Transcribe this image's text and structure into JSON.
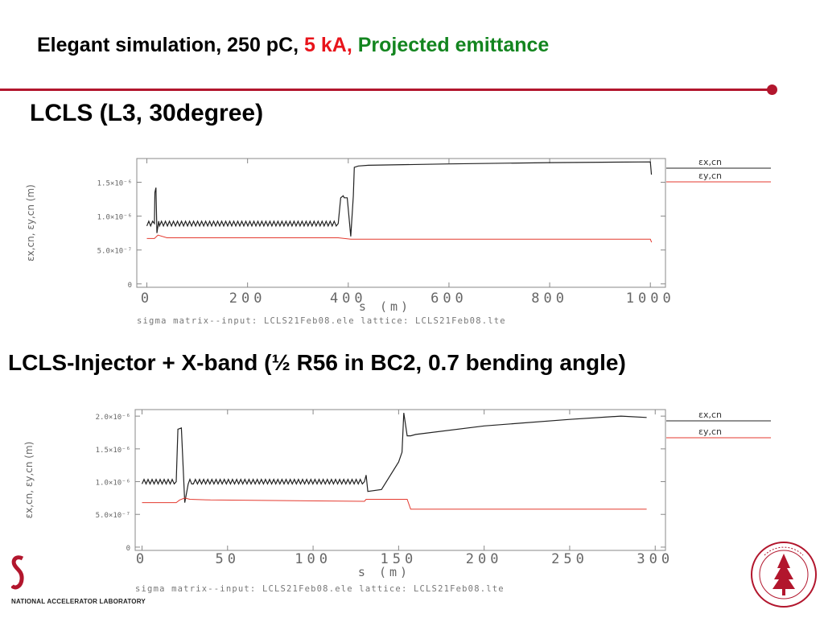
{
  "slide": {
    "title_parts": [
      {
        "text": "Elegant simulation, 250 pC, ",
        "color": "#000000"
      },
      {
        "text": "5 kA, ",
        "color": "#e8141b"
      },
      {
        "text": "Projected emittance",
        "color": "#13851f"
      }
    ],
    "heading_top": "LCLS (L3, 30degree)",
    "heading_bottom": "LCLS-Injector + X-band (½ R56 in BC2, 0.7 bending angle)",
    "footer_lab": "NATIONAL ACCELERATOR LABORATORY",
    "accent_color": "#b2162d"
  },
  "chart_data": [
    {
      "type": "line",
      "xlabel": "s  (m)",
      "ylabel": "εx,cn, εy,cn  (m)",
      "xlim": [
        -20,
        1030
      ],
      "ylim": [
        -5e-08,
        1.85e-06
      ],
      "xticks": [
        0,
        200,
        400,
        600,
        800,
        1000
      ],
      "xtick_labels": [
        "0",
        "200",
        "400",
        "600",
        "800",
        "1000"
      ],
      "yticks": [
        0,
        5e-07,
        1e-06,
        1.5e-06
      ],
      "ytick_labels": [
        "0",
        "5.0×10⁻⁷",
        "1.0×10⁻⁶",
        "1.5×10⁻⁶"
      ],
      "caption": "sigma matrix--input: LCLS21Feb08.ele    lattice: LCLS21Feb08.lte",
      "legend_position": "right",
      "series": [
        {
          "name": "εx,cn",
          "color": "#222222",
          "x": [
            0,
            15,
            16,
            18,
            20,
            22,
            25,
            380,
            385,
            390,
            392,
            398,
            405,
            410,
            412,
            420,
            440,
            600,
            800,
            1000,
            1002,
            1003
          ],
          "y": [
            8.9e-07,
            8.9e-07,
            1.35e-06,
            1.42e-06,
            7.5e-07,
            8.9e-07,
            8.9e-07,
            8.9e-07,
            1.27e-06,
            1.3e-06,
            1.27e-06,
            1.27e-06,
            7e-07,
            1.3e-06,
            1.72e-06,
            1.74e-06,
            1.75e-06,
            1.77e-06,
            1.79e-06,
            1.8e-06,
            1.62e-06,
            1.62e-06
          ]
        },
        {
          "name": "εy,cn",
          "color": "#e43a2f",
          "x": [
            0,
            15,
            22,
            40,
            380,
            405,
            430,
            1000,
            1002,
            1003
          ],
          "y": [
            6.7e-07,
            6.7e-07,
            7.2e-07,
            6.8e-07,
            6.8e-07,
            6.6e-07,
            6.6e-07,
            6.6e-07,
            6.2e-07,
            6.2e-07
          ]
        }
      ]
    },
    {
      "type": "line",
      "xlabel": "s  (m)",
      "ylabel": "εx,cn, εy,cn  (m)",
      "xlim": [
        -4,
        306
      ],
      "ylim": [
        -5e-08,
        2.1e-06
      ],
      "xticks": [
        0,
        50,
        100,
        150,
        200,
        250,
        300
      ],
      "xtick_labels": [
        "0",
        "50",
        "100",
        "150",
        "200",
        "250",
        "300"
      ],
      "yticks": [
        0,
        5e-07,
        1e-06,
        1.5e-06,
        2e-06
      ],
      "ytick_labels": [
        "0",
        "5.0×10⁻⁷",
        "1.0×10⁻⁶",
        "1.5×10⁻⁶",
        "2.0×10⁻⁶"
      ],
      "caption": "sigma matrix--input: LCLS21Feb08.ele    lattice: LCLS21Feb08.lte",
      "legend_position": "right",
      "series": [
        {
          "name": "εx,cn",
          "color": "#222222",
          "x": [
            0,
            20,
            21,
            23,
            25,
            27,
            30,
            130,
            131,
            132,
            140,
            150,
            152,
            153,
            155,
            157,
            160,
            200,
            250,
            280,
            295
          ],
          "y": [
            1e-06,
            1e-06,
            1.8e-06,
            1.82e-06,
            6.8e-07,
            1e-06,
            1e-06,
            1e-06,
            1.1e-06,
            8.5e-07,
            8.8e-07,
            1.3e-06,
            1.45e-06,
            2.05e-06,
            1.7e-06,
            1.7e-06,
            1.72e-06,
            1.85e-06,
            1.95e-06,
            2e-06,
            1.98e-06
          ]
        },
        {
          "name": "εy,cn",
          "color": "#e43a2f",
          "x": [
            0,
            20,
            22,
            25,
            28,
            40,
            130,
            131,
            155,
            157,
            295
          ],
          "y": [
            6.8e-07,
            6.8e-07,
            7.2e-07,
            7.5e-07,
            7.3e-07,
            7.2e-07,
            7e-07,
            7.3e-07,
            7.3e-07,
            5.8e-07,
            5.8e-07
          ]
        }
      ]
    }
  ]
}
